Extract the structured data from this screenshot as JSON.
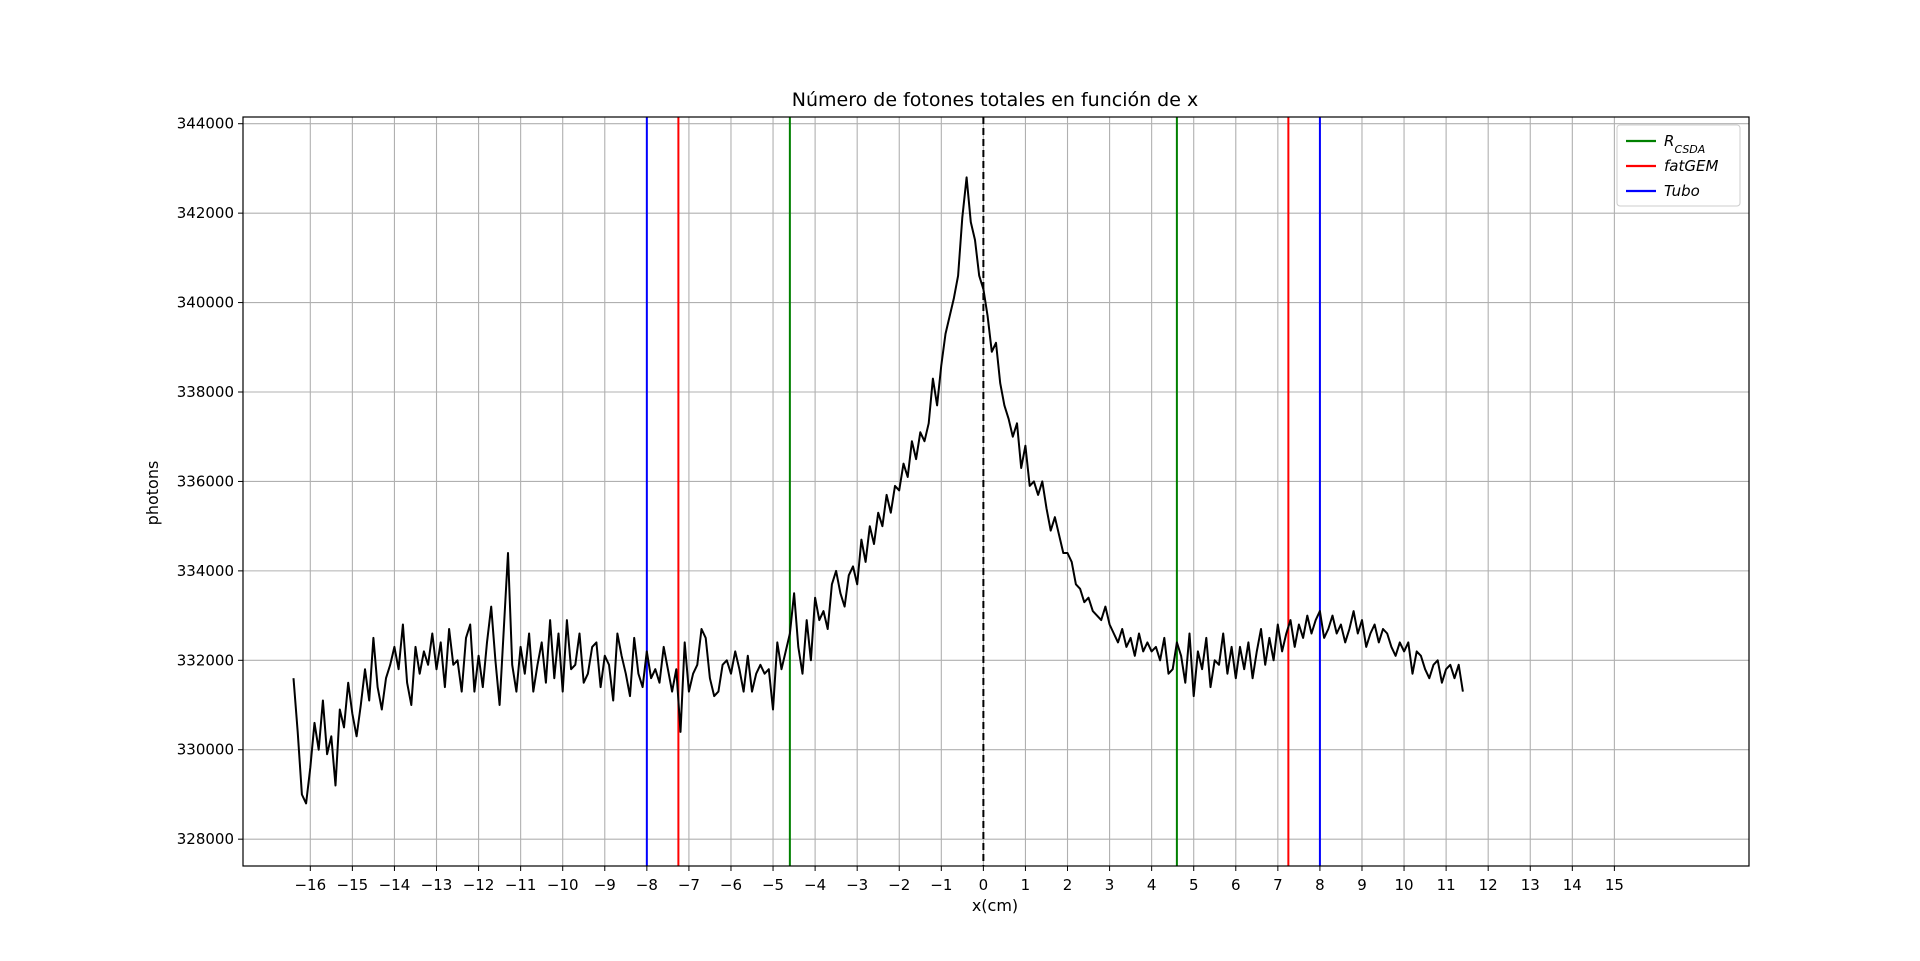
{
  "chart_data": {
    "type": "line",
    "title": "Número de fotones totales en función de x",
    "xlabel": "x(cm)",
    "ylabel": "photons",
    "xlim": [
      -17.6,
      18.2
    ],
    "ylim": [
      327400,
      344150
    ],
    "grid": true,
    "x_ticks": [
      -16,
      -15,
      -14,
      -13,
      -12,
      -11,
      -10,
      -9,
      -8,
      -7,
      -6,
      -5,
      -4,
      -3,
      -2,
      -1,
      0,
      1,
      2,
      3,
      4,
      5,
      6,
      7,
      8,
      9,
      10,
      11,
      12,
      13,
      14,
      15
    ],
    "x_tick_labels": [
      "−16",
      "−15",
      "−14",
      "−13",
      "−12",
      "−11",
      "−10",
      "−9",
      "−8",
      "−7",
      "−6",
      "−5",
      "−4",
      "−3",
      "−2",
      "−1",
      "0",
      "1",
      "2",
      "3",
      "4",
      "5",
      "6",
      "7",
      "8",
      "9",
      "10",
      "11",
      "12",
      "13",
      "14",
      "15"
    ],
    "y_ticks": [
      328000,
      330000,
      332000,
      334000,
      336000,
      338000,
      340000,
      342000,
      344000
    ],
    "y_tick_labels": [
      "328000",
      "330000",
      "332000",
      "334000",
      "336000",
      "338000",
      "340000",
      "342000",
      "344000"
    ],
    "series": [
      {
        "color": "#000000",
        "x_start": -16.4,
        "x_step": 0.1,
        "values": [
          331600,
          330400,
          329000,
          328800,
          329600,
          330600,
          330000,
          331100,
          329900,
          330300,
          329200,
          330900,
          330500,
          331500,
          330800,
          330300,
          331000,
          331800,
          331100,
          332500,
          331400,
          330900,
          331600,
          331900,
          332300,
          331800,
          332800,
          331500,
          331000,
          332300,
          331700,
          332200,
          331900,
          332600,
          331800,
          332400,
          331400,
          332700,
          331900,
          332000,
          331300,
          332500,
          332800,
          331300,
          332100,
          331400,
          332400,
          333200,
          332000,
          331000,
          332700,
          334400,
          331900,
          331300,
          332300,
          331700,
          332600,
          331300,
          331900,
          332400,
          331500,
          332900,
          331600,
          332600,
          331300,
          332900,
          331800,
          331900,
          332600,
          331500,
          331700,
          332300,
          332400,
          331400,
          332100,
          331900,
          331100,
          332600,
          332100,
          331700,
          331200,
          332500,
          331700,
          331400,
          332200,
          331600,
          331800,
          331500,
          332300,
          331800,
          331300,
          331800,
          330400,
          332400,
          331300,
          331700,
          331900,
          332700,
          332500,
          331600,
          331200,
          331300,
          331900,
          332000,
          331700,
          332200,
          331800,
          331300,
          332100,
          331300,
          331700,
          331900,
          331700,
          331800,
          330900,
          332400,
          331800,
          332200,
          332600,
          333500,
          332300,
          331700,
          332900,
          332000,
          333400,
          332900,
          333100,
          332700,
          333700,
          334000,
          333500,
          333200,
          333900,
          334100,
          333700,
          334700,
          334200,
          335000,
          334600,
          335300,
          335000,
          335700,
          335300,
          335900,
          335800,
          336400,
          336100,
          336900,
          336500,
          337100,
          336900,
          337300,
          338300,
          337700,
          338600,
          339300,
          339700,
          340100,
          340600,
          341900,
          342800,
          341800,
          341400,
          340600,
          340300,
          339700,
          338900,
          339100,
          338200,
          337700,
          337400,
          337000,
          337300,
          336300,
          336800,
          335900,
          336000,
          335700,
          336000,
          335400,
          334900,
          335200,
          334800,
          334400,
          334400,
          334200,
          333700,
          333600,
          333300,
          333400,
          333100,
          333000,
          332900,
          333200,
          332800,
          332600,
          332400,
          332700,
          332300,
          332500,
          332100,
          332600,
          332200,
          332400,
          332200,
          332300,
          332000,
          332500,
          331700,
          331800,
          332400,
          332100,
          331500,
          332600,
          331200,
          332200,
          331800,
          332500,
          331400,
          332000,
          331900,
          332600,
          331700,
          332300,
          331600,
          332300,
          331800,
          332400,
          331600,
          332200,
          332700,
          331900,
          332500,
          332000,
          332800,
          332200,
          332600,
          332900,
          332300,
          332800,
          332500,
          333000,
          332600,
          332900,
          333100,
          332500,
          332700,
          333000,
          332600,
          332800,
          332400,
          332700,
          333100,
          332600,
          332900,
          332300,
          332600,
          332800,
          332400,
          332700,
          332600,
          332300,
          332100,
          332400,
          332200,
          332400,
          331700,
          332200,
          332100,
          331800,
          331600,
          331900,
          332000,
          331500,
          331800,
          331900,
          331600,
          331900,
          331300
        ]
      }
    ],
    "vlines": [
      {
        "x": -8.0,
        "color": "#0000ff",
        "series": "Tubo"
      },
      {
        "x": -7.25,
        "color": "#ff0000",
        "series": "fatGEM"
      },
      {
        "x": -4.6,
        "color": "#008000",
        "series": "R_CSDA"
      },
      {
        "x": 0,
        "color": "#000000",
        "dashed": true
      },
      {
        "x": 4.6,
        "color": "#008000",
        "series": "R_CSDA"
      },
      {
        "x": 7.25,
        "color": "#ff0000",
        "series": "fatGEM"
      },
      {
        "x": 8.0,
        "color": "#0000ff",
        "series": "Tubo"
      }
    ],
    "legend": {
      "placement": "top-right",
      "items": [
        {
          "label_main": "R",
          "label_sub": "CSDA",
          "color": "#008000"
        },
        {
          "label_main": "fatGEM",
          "label_sub": "",
          "color": "#ff0000"
        },
        {
          "label_main": "Tubo",
          "label_sub": "",
          "color": "#0000ff"
        }
      ]
    }
  }
}
